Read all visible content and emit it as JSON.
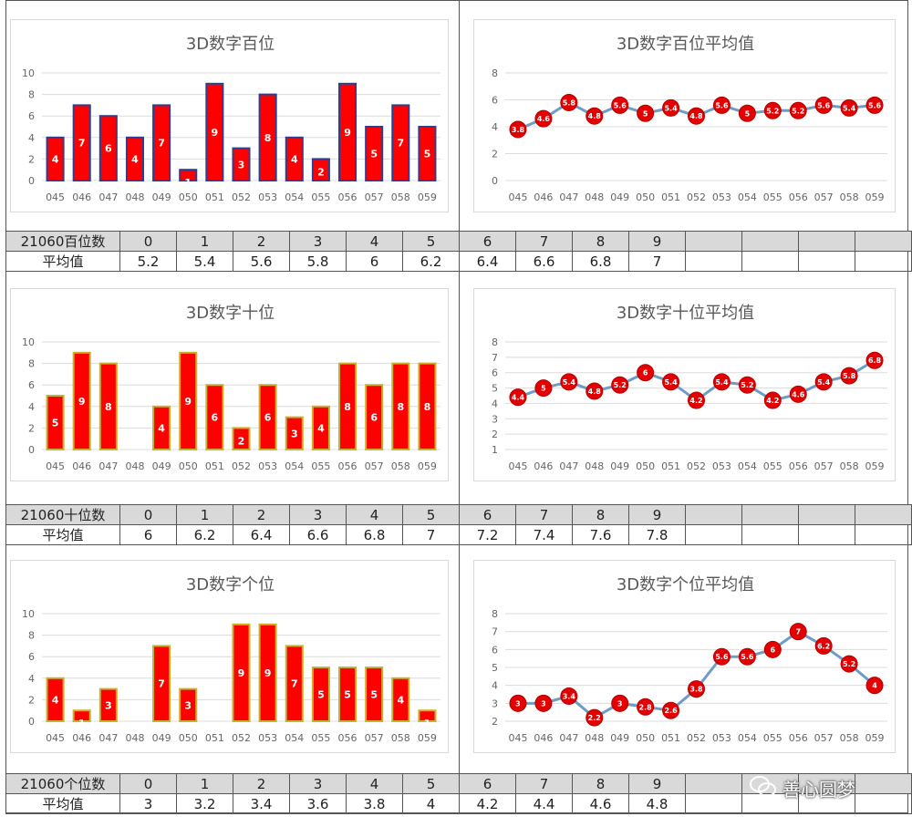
{
  "sections": [
    {
      "bar_title": "3D数字百位",
      "line_title": "3D数字百位平均值",
      "table_head": "21060百位数",
      "table_label": "平均值",
      "digits": [
        "0",
        "1",
        "2",
        "3",
        "4",
        "5",
        "6",
        "7",
        "8",
        "9"
      ],
      "averages": [
        "5.2",
        "5.4",
        "5.6",
        "5.8",
        "6",
        "6.2",
        "6.4",
        "6.6",
        "6.8",
        "7"
      ]
    },
    {
      "bar_title": "3D数字十位",
      "line_title": "3D数字十位平均值",
      "table_head": "21060十位数",
      "table_label": "平均值",
      "digits": [
        "0",
        "1",
        "2",
        "3",
        "4",
        "5",
        "6",
        "7",
        "8",
        "9"
      ],
      "averages": [
        "6",
        "6.2",
        "6.4",
        "6.6",
        "6.8",
        "7",
        "7.2",
        "7.4",
        "7.6",
        "7.8"
      ]
    },
    {
      "bar_title": "3D数字个位",
      "line_title": "3D数字个位平均值",
      "table_head": "21060个位数",
      "table_label": "平均值",
      "digits": [
        "0",
        "1",
        "2",
        "3",
        "4",
        "5",
        "6",
        "7",
        "8",
        "9"
      ],
      "averages": [
        "3",
        "3.2",
        "3.4",
        "3.6",
        "3.8",
        "4",
        "4.2",
        "4.4",
        "4.6",
        "4.8"
      ]
    }
  ],
  "watermark": "善心圆梦",
  "colors": {
    "bar": "#ff0000",
    "bar_border": "#2f3f8f",
    "bar_border_alt": "#c9b12a",
    "line": "#6d9cc7",
    "marker": "#e30000",
    "grid": "#dcdcdc",
    "axis_text": "#666666"
  },
  "chart_data": [
    {
      "type": "bar",
      "title": "3D数字百位",
      "categories": [
        "045",
        "046",
        "047",
        "048",
        "049",
        "050",
        "051",
        "052",
        "053",
        "054",
        "055",
        "056",
        "057",
        "058",
        "059"
      ],
      "values": [
        4,
        7,
        6,
        4,
        7,
        1,
        9,
        3,
        8,
        4,
        2,
        9,
        5,
        7,
        5
      ],
      "ylim": [
        0,
        10
      ],
      "yticks": [
        0,
        2,
        4,
        6,
        8,
        10
      ],
      "grid": true,
      "data_labels": true
    },
    {
      "type": "line",
      "title": "3D数字百位平均值",
      "categories": [
        "045",
        "046",
        "047",
        "048",
        "049",
        "050",
        "051",
        "052",
        "053",
        "054",
        "055",
        "056",
        "057",
        "058",
        "059"
      ],
      "values": [
        3.8,
        4.6,
        5.8,
        4.8,
        5.6,
        5,
        5.4,
        4.8,
        5.6,
        5,
        5.2,
        5.2,
        5.6,
        5.4,
        5.6
      ],
      "ylim": [
        0,
        8
      ],
      "yticks": [
        0,
        2,
        4,
        6,
        8
      ],
      "grid": true,
      "data_labels": true
    },
    {
      "type": "bar",
      "title": "3D数字十位",
      "categories": [
        "045",
        "046",
        "047",
        "048",
        "049",
        "050",
        "051",
        "052",
        "053",
        "054",
        "055",
        "056",
        "057",
        "058",
        "059"
      ],
      "values": [
        5,
        9,
        8,
        0,
        4,
        9,
        6,
        2,
        6,
        3,
        4,
        8,
        6,
        8,
        8
      ],
      "ylim": [
        0,
        10
      ],
      "yticks": [
        0,
        2,
        4,
        6,
        8,
        10
      ],
      "grid": true,
      "data_labels": true
    },
    {
      "type": "line",
      "title": "3D数字十位平均值",
      "categories": [
        "045",
        "046",
        "047",
        "048",
        "049",
        "050",
        "051",
        "052",
        "053",
        "054",
        "055",
        "056",
        "057",
        "058",
        "059"
      ],
      "values": [
        4.4,
        5,
        5.4,
        4.8,
        5.2,
        6,
        5.4,
        4.2,
        5.4,
        5.2,
        4.2,
        4.6,
        5.4,
        5.8,
        6.8
      ],
      "ylim": [
        1,
        8
      ],
      "yticks": [
        1,
        2,
        3,
        4,
        5,
        6,
        7,
        8
      ],
      "grid": true,
      "data_labels": true
    },
    {
      "type": "bar",
      "title": "3D数字个位",
      "categories": [
        "045",
        "046",
        "047",
        "048",
        "049",
        "050",
        "051",
        "052",
        "053",
        "054",
        "055",
        "056",
        "057",
        "058",
        "059"
      ],
      "values": [
        4,
        1,
        3,
        0,
        7,
        3,
        0,
        9,
        9,
        7,
        5,
        5,
        5,
        4,
        1
      ],
      "ylim": [
        0,
        10
      ],
      "yticks": [
        0,
        2,
        4,
        6,
        8,
        10
      ],
      "grid": true,
      "data_labels": true
    },
    {
      "type": "line",
      "title": "3D数字个位平均值",
      "categories": [
        "045",
        "046",
        "047",
        "048",
        "049",
        "050",
        "051",
        "052",
        "053",
        "054",
        "055",
        "056",
        "057",
        "058",
        "059"
      ],
      "values": [
        3,
        3,
        3.4,
        2.2,
        3,
        2.8,
        2.6,
        3.8,
        5.6,
        5.6,
        6,
        7,
        6.2,
        5.2,
        4
      ],
      "ylim": [
        2,
        8
      ],
      "yticks": [
        2,
        3,
        4,
        5,
        6,
        7,
        8
      ],
      "grid": true,
      "data_labels": true
    }
  ]
}
